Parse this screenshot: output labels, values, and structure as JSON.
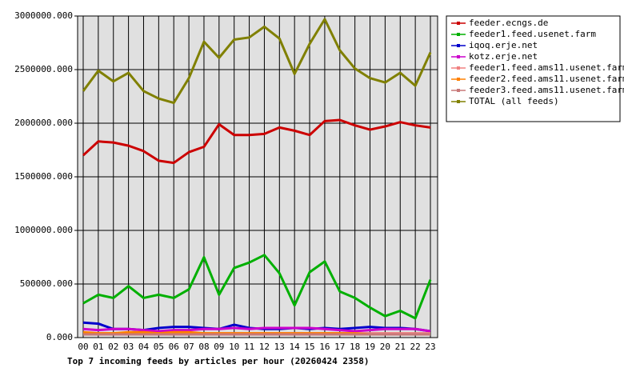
{
  "chart_data": {
    "type": "line",
    "title": "Top 7 incoming feeds by articles per hour (20260424 2358)",
    "categories": [
      "00",
      "01",
      "02",
      "03",
      "04",
      "05",
      "06",
      "07",
      "08",
      "09",
      "10",
      "11",
      "12",
      "13",
      "14",
      "15",
      "16",
      "17",
      "18",
      "19",
      "20",
      "21",
      "22",
      "23"
    ],
    "series": [
      {
        "name": "feeder.ecngs.de",
        "color": "#cc0000",
        "values": [
          1700000,
          1830000,
          1820000,
          1790000,
          1740000,
          1650000,
          1630000,
          1730000,
          1780000,
          1990000,
          1890000,
          1890000,
          1900000,
          1960000,
          1930000,
          1890000,
          2020000,
          2030000,
          1980000,
          1940000,
          1970000,
          2010000,
          1980000,
          1960000
        ]
      },
      {
        "name": "feeder1.feed.usenet.farm",
        "color": "#00b000",
        "values": [
          320000,
          400000,
          370000,
          480000,
          370000,
          400000,
          370000,
          450000,
          750000,
          400000,
          650000,
          700000,
          770000,
          600000,
          300000,
          610000,
          710000,
          430000,
          370000,
          280000,
          200000,
          250000,
          180000,
          540000
        ]
      },
      {
        "name": "iqoq.erje.net",
        "color": "#0000cc",
        "values": [
          140000,
          130000,
          80000,
          80000,
          70000,
          90000,
          100000,
          100000,
          90000,
          80000,
          120000,
          90000,
          80000,
          80000,
          90000,
          80000,
          90000,
          80000,
          90000,
          100000,
          90000,
          90000,
          80000,
          60000
        ]
      },
      {
        "name": "kotz.erje.net",
        "color": "#cc00cc",
        "values": [
          80000,
          70000,
          80000,
          80000,
          70000,
          60000,
          70000,
          70000,
          80000,
          80000,
          90000,
          80000,
          90000,
          90000,
          90000,
          90000,
          80000,
          70000,
          60000,
          70000,
          80000,
          80000,
          80000,
          60000
        ]
      },
      {
        "name": "feeder1.feed.ams11.usenet.farm",
        "color": "#f08080",
        "values": [
          40000,
          40000,
          40000,
          40000,
          40000,
          40000,
          40000,
          40000,
          40000,
          40000,
          40000,
          40000,
          40000,
          40000,
          40000,
          40000,
          40000,
          40000,
          40000,
          40000,
          40000,
          40000,
          40000,
          40000
        ]
      },
      {
        "name": "feeder2.feed.ams11.usenet.farm",
        "color": "#ff8000",
        "values": [
          50000,
          40000,
          40000,
          50000,
          50000,
          40000,
          50000,
          50000,
          40000,
          40000,
          40000,
          40000,
          40000,
          40000,
          40000,
          40000,
          40000,
          40000,
          40000,
          30000,
          30000,
          30000,
          30000,
          30000
        ]
      },
      {
        "name": "feeder3.feed.ams11.usenet.farm",
        "color": "#c87878",
        "values": [
          30000,
          30000,
          30000,
          30000,
          30000,
          30000,
          30000,
          30000,
          30000,
          30000,
          30000,
          30000,
          30000,
          30000,
          30000,
          30000,
          30000,
          30000,
          30000,
          30000,
          30000,
          30000,
          30000,
          30000
        ]
      },
      {
        "name": "TOTAL (all feeds)",
        "color": "#808000",
        "values": [
          2300000,
          2490000,
          2390000,
          2470000,
          2300000,
          2230000,
          2190000,
          2420000,
          2760000,
          2610000,
          2780000,
          2800000,
          2900000,
          2790000,
          2460000,
          2740000,
          2970000,
          2680000,
          2510000,
          2420000,
          2380000,
          2470000,
          2350000,
          2660000
        ]
      }
    ],
    "ylim": [
      0,
      3000000
    ],
    "yticks": [
      {
        "value": 0,
        "label": "0.000"
      },
      {
        "value": 500000,
        "label": "500000.000"
      },
      {
        "value": 1000000,
        "label": "1000000.000"
      },
      {
        "value": 1500000,
        "label": "1500000.000"
      },
      {
        "value": 2000000,
        "label": "2000000.000"
      },
      {
        "value": 2500000,
        "label": "2500000.000"
      },
      {
        "value": 3000000,
        "label": "3000000.000"
      }
    ],
    "grid": true,
    "legend": "right"
  }
}
